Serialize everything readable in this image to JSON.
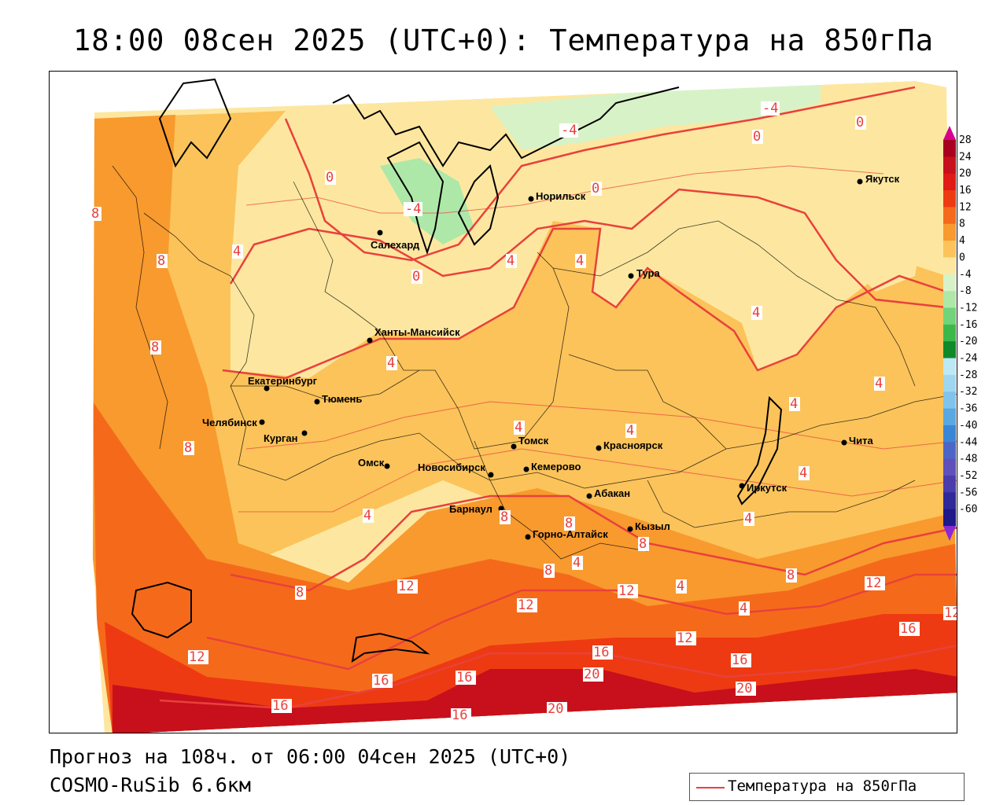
{
  "title": "18:00 08сен 2025 (UTC+0): Температура на 850гПа",
  "forecast_line": "Прогноз на 108ч. от 06:00 04сен 2025 (UTC+0)",
  "model_line": "COSMO-RuSib 6.6км",
  "legend_label": "Температура на 850гПа",
  "colorbar": {
    "ticks": [
      "28",
      "24",
      "20",
      "16",
      "12",
      "8",
      "4",
      "0",
      "-4",
      "-8",
      "-12",
      "-16",
      "-20",
      "-24",
      "-28",
      "-32",
      "-36",
      "-40",
      "-44",
      "-48",
      "-52",
      "-56",
      "-60"
    ],
    "colors": [
      "#a8001e",
      "#c7101c",
      "#e01a16",
      "#ee3a12",
      "#f56a1a",
      "#f89a2e",
      "#fbc35a",
      "#fde7a0",
      "#d8f2c8",
      "#aee8a8",
      "#6fd47a",
      "#3cb84a",
      "#0f8a2a",
      "#bde8f5",
      "#9fd7f1",
      "#80c4ec",
      "#5aa8e2",
      "#3a86d6",
      "#4c66c8",
      "#6050bc",
      "#4a3cac",
      "#30299a",
      "#1e1a8a"
    ],
    "top_arrow_color": "#d6008c",
    "bottom_arrow_color": "#8a2ad6"
  },
  "map": {
    "cities": [
      {
        "name": "Якутск"
      },
      {
        "name": "Норильск"
      },
      {
        "name": "Салехард"
      },
      {
        "name": "Тура"
      },
      {
        "name": "Ханты-Мансийск"
      },
      {
        "name": "Екатеринбург"
      },
      {
        "name": "Тюмень"
      },
      {
        "name": "Челябинск"
      },
      {
        "name": "Курган"
      },
      {
        "name": "Омск"
      },
      {
        "name": "Томск"
      },
      {
        "name": "Новосибирск"
      },
      {
        "name": "Кемерово"
      },
      {
        "name": "Красноярск"
      },
      {
        "name": "Барнаул"
      },
      {
        "name": "Абакан"
      },
      {
        "name": "Горно-Алтайск"
      },
      {
        "name": "Кызыл"
      },
      {
        "name": "Иркутск"
      },
      {
        "name": "Чита"
      }
    ],
    "isotherm_labels": [
      "-4",
      "-4",
      "-4",
      "0",
      "0",
      "0",
      "0",
      "0",
      "4",
      "4",
      "4",
      "4",
      "4",
      "4",
      "4",
      "4",
      "4",
      "4",
      "4",
      "4",
      "4",
      "4",
      "4",
      "8",
      "8",
      "8",
      "8",
      "8",
      "8",
      "8",
      "8",
      "8",
      "8",
      "12",
      "12",
      "12",
      "12",
      "12",
      "12",
      "12",
      "16",
      "16",
      "16",
      "16",
      "16",
      "16",
      "16",
      "20",
      "20",
      "20"
    ]
  }
}
